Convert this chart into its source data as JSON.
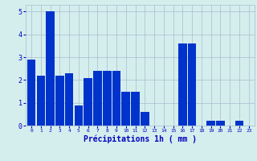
{
  "categories": [
    0,
    1,
    2,
    3,
    4,
    5,
    6,
    7,
    8,
    9,
    10,
    11,
    12,
    13,
    14,
    15,
    16,
    17,
    18,
    19,
    20,
    21,
    22,
    23
  ],
  "values": [
    2.9,
    2.2,
    5.0,
    2.2,
    2.3,
    0.9,
    2.1,
    2.4,
    2.4,
    2.4,
    1.5,
    1.5,
    0.6,
    0.0,
    0.0,
    0.0,
    3.6,
    3.6,
    0.0,
    0.2,
    0.2,
    0.0,
    0.2,
    0.0
  ],
  "bar_color": "#0033cc",
  "background_color": "#d4eeee",
  "grid_color": "#aabbcc",
  "xlabel": "Précipitations 1h ( mm )",
  "xlabel_color": "#0000bb",
  "tick_color": "#0000bb",
  "ylim": [
    0,
    5.3
  ],
  "yticks": [
    0,
    1,
    2,
    3,
    4,
    5
  ]
}
